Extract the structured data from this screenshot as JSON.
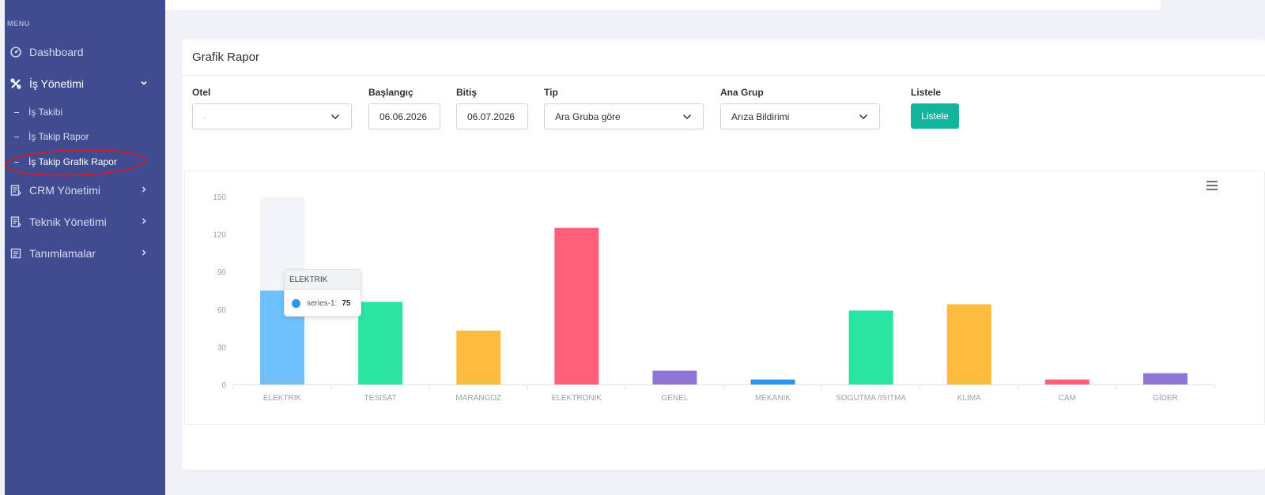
{
  "sidebar": {
    "menu_label": "MENU",
    "items": [
      {
        "label": "Dashboard",
        "icon": "dashboard-gauge-icon"
      },
      {
        "label": "İş Yönetimi",
        "icon": "tools-icon",
        "expanded": true
      },
      {
        "label": "CRM Yönetimi",
        "icon": "document-list-icon"
      },
      {
        "label": "Teknik Yönetimi",
        "icon": "document-list-icon"
      },
      {
        "label": "Tanımlamalar",
        "icon": "list-box-icon"
      }
    ],
    "sub_items": [
      {
        "label": "İş Takibi"
      },
      {
        "label": "İş Takip Rapor"
      },
      {
        "label": "İş Takip Grafik Rapor",
        "selected": true
      }
    ]
  },
  "page": {
    "title": "Grafik Rapor"
  },
  "filters": {
    "otel": {
      "label": "Otel",
      "value": "-"
    },
    "baslangic": {
      "label": "Başlangıç",
      "value": "06.06.2026"
    },
    "bitis": {
      "label": "Bitiş",
      "value": "06.07.2026"
    },
    "tip": {
      "label": "Tip",
      "value": "Ara Gruba göre"
    },
    "ana_grup": {
      "label": "Ana Grup",
      "value": "Arıza Bildirimi"
    },
    "listele": {
      "label": "Listele",
      "button": "Listele"
    }
  },
  "colors": {
    "sidebar_bg": "#404c8f",
    "accent_button": "#14b49c",
    "highlight_circle": "#d8182c"
  },
  "chart_data": {
    "type": "bar",
    "categories": [
      "ELEKTRIK",
      "TESISAT",
      "MARANGOZ",
      "ELEKTRONIK",
      "GENEL",
      "MEKANIK",
      "SOGUTMA /ISITMA",
      "KLİMA",
      "CAM",
      "GİDER"
    ],
    "series": [
      {
        "name": "series-1",
        "values": [
          75,
          66,
          43,
          125,
          11,
          4,
          59,
          64,
          4,
          9
        ]
      }
    ],
    "bar_colors": [
      "#6ec1fd",
      "#2ae4a2",
      "#fdbc3d",
      "#fe6079",
      "#8e75d8",
      "#2f95e8",
      "#2ae4a2",
      "#fdbc3d",
      "#fe6079",
      "#8e75d8"
    ],
    "ylim": [
      0,
      150
    ],
    "yticks": [
      0,
      30,
      60,
      90,
      120,
      150
    ],
    "hovered_index": 0,
    "tooltip": {
      "category": "ELEKTRIK",
      "series": "series-1:",
      "value": 75
    }
  }
}
